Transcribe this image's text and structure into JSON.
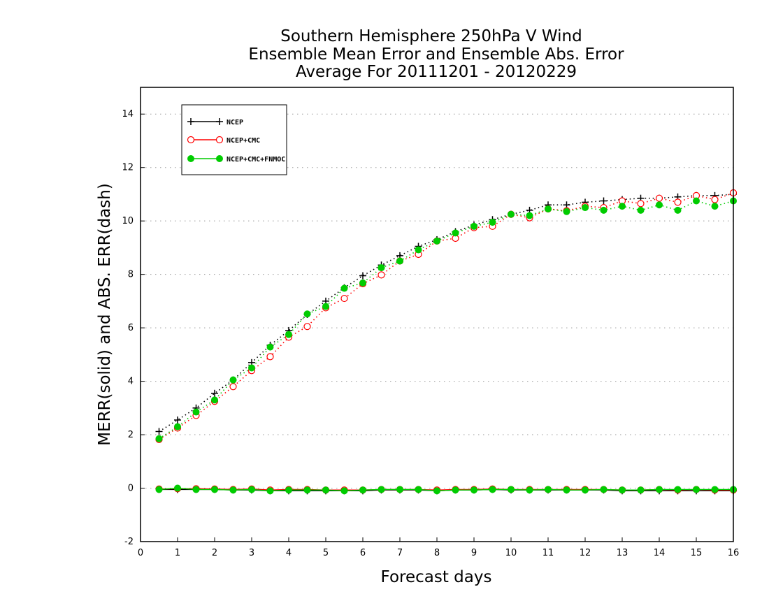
{
  "chart_data": {
    "type": "line",
    "title": [
      "Southern Hemisphere 250hPa V Wind",
      "Ensemble Mean Error and Ensemble Abs. Error",
      "Average For 20111201 - 20120229"
    ],
    "xlabel": "Forecast days",
    "ylabel": "MERR(solid) and ABS. ERR(dash)",
    "xlim": [
      0,
      16
    ],
    "ylim": [
      -2,
      15
    ],
    "xticks": [
      "0",
      "1",
      "2",
      "3",
      "4",
      "5",
      "6",
      "7",
      "8",
      "9",
      "10",
      "11",
      "12",
      "13",
      "14",
      "15",
      "16"
    ],
    "yticks": [
      "-2",
      "0",
      "2",
      "4",
      "6",
      "8",
      "10",
      "12",
      "14"
    ],
    "grid": "horizontal dotted",
    "legend_position": "top-left",
    "x": [
      0.5,
      1,
      1.5,
      2,
      2.5,
      3,
      3.5,
      4,
      4.5,
      5,
      5.5,
      6,
      6.5,
      7,
      7.5,
      8,
      8.5,
      9,
      9.5,
      10,
      10.5,
      11,
      11.5,
      12,
      12.5,
      13,
      13.5,
      14,
      14.5,
      15,
      15.5,
      16
    ],
    "series": [
      {
        "name": "NCEP",
        "color": "#000000",
        "marker": "plus",
        "abs_err": [
          2.12,
          2.55,
          3.0,
          3.55,
          4.05,
          4.7,
          5.35,
          5.9,
          6.5,
          7.0,
          7.5,
          7.95,
          8.35,
          8.7,
          9.05,
          9.3,
          9.6,
          9.85,
          10.05,
          10.25,
          10.4,
          10.6,
          10.6,
          10.7,
          10.75,
          10.8,
          10.85,
          10.85,
          10.9,
          10.95,
          10.95,
          11.0
        ],
        "mean_err": [
          -0.05,
          -0.05,
          -0.05,
          -0.05,
          -0.07,
          -0.07,
          -0.1,
          -0.1,
          -0.1,
          -0.1,
          -0.1,
          -0.1,
          -0.07,
          -0.07,
          -0.07,
          -0.1,
          -0.07,
          -0.07,
          -0.05,
          -0.07,
          -0.07,
          -0.07,
          -0.07,
          -0.07,
          -0.07,
          -0.1,
          -0.1,
          -0.1,
          -0.1,
          -0.1,
          -0.1,
          -0.1
        ]
      },
      {
        "name": "NCEP+CMC",
        "color": "#ff0000",
        "marker": "open-circle",
        "abs_err": [
          1.82,
          2.25,
          2.72,
          3.25,
          3.8,
          4.4,
          4.92,
          5.65,
          6.05,
          6.75,
          7.1,
          7.65,
          7.98,
          8.5,
          8.75,
          9.25,
          9.35,
          9.75,
          9.8,
          10.25,
          10.12,
          10.45,
          10.38,
          10.55,
          10.5,
          10.75,
          10.65,
          10.85,
          10.7,
          10.95,
          10.8,
          11.05
        ],
        "mean_err": [
          -0.03,
          -0.02,
          -0.02,
          -0.03,
          -0.05,
          -0.03,
          -0.07,
          -0.05,
          -0.05,
          -0.07,
          -0.07,
          -0.07,
          -0.05,
          -0.05,
          -0.05,
          -0.07,
          -0.05,
          -0.05,
          -0.03,
          -0.05,
          -0.05,
          -0.05,
          -0.05,
          -0.05,
          -0.05,
          -0.07,
          -0.07,
          -0.05,
          -0.07,
          -0.05,
          -0.07,
          -0.07
        ]
      },
      {
        "name": "NCEP+CMC+FNMOC",
        "color": "#00cc00",
        "marker": "filled-circle",
        "abs_err": [
          1.85,
          2.3,
          2.85,
          3.3,
          4.05,
          4.5,
          5.28,
          5.75,
          6.52,
          6.8,
          7.48,
          7.68,
          8.25,
          8.5,
          8.92,
          9.25,
          9.55,
          9.8,
          9.95,
          10.25,
          10.2,
          10.45,
          10.35,
          10.5,
          10.4,
          10.55,
          10.4,
          10.6,
          10.4,
          10.75,
          10.55,
          10.75
        ],
        "mean_err": [
          -0.05,
          0.0,
          -0.05,
          -0.05,
          -0.07,
          -0.05,
          -0.1,
          -0.07,
          -0.07,
          -0.07,
          -0.1,
          -0.07,
          -0.05,
          -0.05,
          -0.05,
          -0.1,
          -0.07,
          -0.07,
          -0.05,
          -0.05,
          -0.07,
          -0.05,
          -0.07,
          -0.07,
          -0.05,
          -0.07,
          -0.07,
          -0.05,
          -0.05,
          -0.05,
          -0.05,
          -0.05
        ]
      }
    ]
  }
}
